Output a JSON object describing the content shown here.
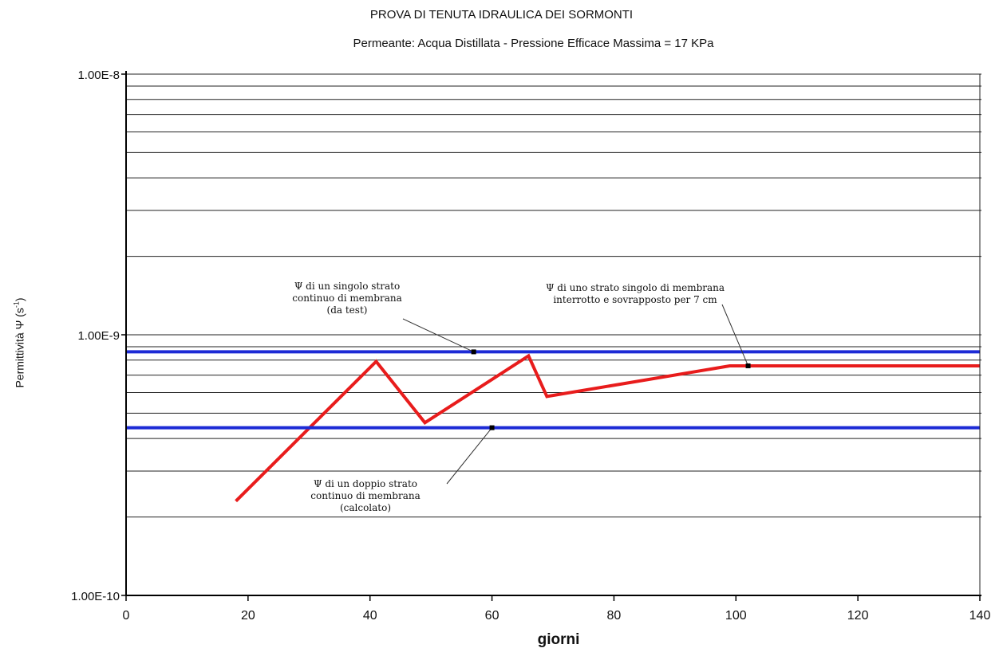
{
  "chart_data": {
    "type": "line",
    "title": "PROVA DI TENUTA IDRAULICA DEI SORMONTI",
    "subtitle": "Permeante: Acqua Distillata - Pressione Efficace Massima = 17 KPa",
    "xlabel": "giorni",
    "ylabel": "Permittività Ψ (s-1)",
    "ylabel_main": "Permittività Ψ (s",
    "ylabel_sup": "-1",
    "ylabel_end": ")",
    "yscale": "log",
    "xlim": [
      0,
      140
    ],
    "ylim": [
      1e-10,
      1e-08
    ],
    "x_ticks": [
      0,
      20,
      40,
      60,
      80,
      100,
      120,
      140
    ],
    "x_tick_labels": [
      "0",
      "20",
      "40",
      "60",
      "80",
      "100",
      "120",
      "140"
    ],
    "y_ticks": [
      1e-10,
      1e-09,
      1e-08
    ],
    "y_tick_labels": [
      "1.00E-10",
      "1.00E-9",
      "1.00E-8"
    ],
    "grid": "horizontal, log minor lines",
    "series": [
      {
        "color": "#e81c1c",
        "x": [
          18,
          41,
          49,
          66,
          69,
          99,
          140
        ],
        "y": [
          2.3e-10,
          7.9e-10,
          4.6e-10,
          8.3e-10,
          5.8e-10,
          7.6e-10,
          7.6e-10
        ]
      },
      {
        "color": "#1d2bd6",
        "x": [
          0,
          140
        ],
        "y": [
          8.6e-10,
          8.6e-10
        ]
      },
      {
        "color": "#1d2bd6",
        "x": [
          0,
          140
        ],
        "y": [
          4.4e-10,
          4.4e-10
        ]
      }
    ],
    "annotations": [
      {
        "lines": [
          "Ψ di un singolo strato",
          "continuo di membrana",
          "(da test)"
        ],
        "point": [
          57,
          8.6e-10
        ]
      },
      {
        "lines": [
          "Ψ di uno strato singolo di membrana",
          "interrotto e sovrapposto per 7 cm"
        ],
        "point": [
          102,
          7.6e-10
        ]
      },
      {
        "lines": [
          "Ψ di un doppio strato",
          "continuo di membrana",
          "(calcolato)"
        ],
        "point": [
          60,
          4.4e-10
        ]
      }
    ]
  }
}
